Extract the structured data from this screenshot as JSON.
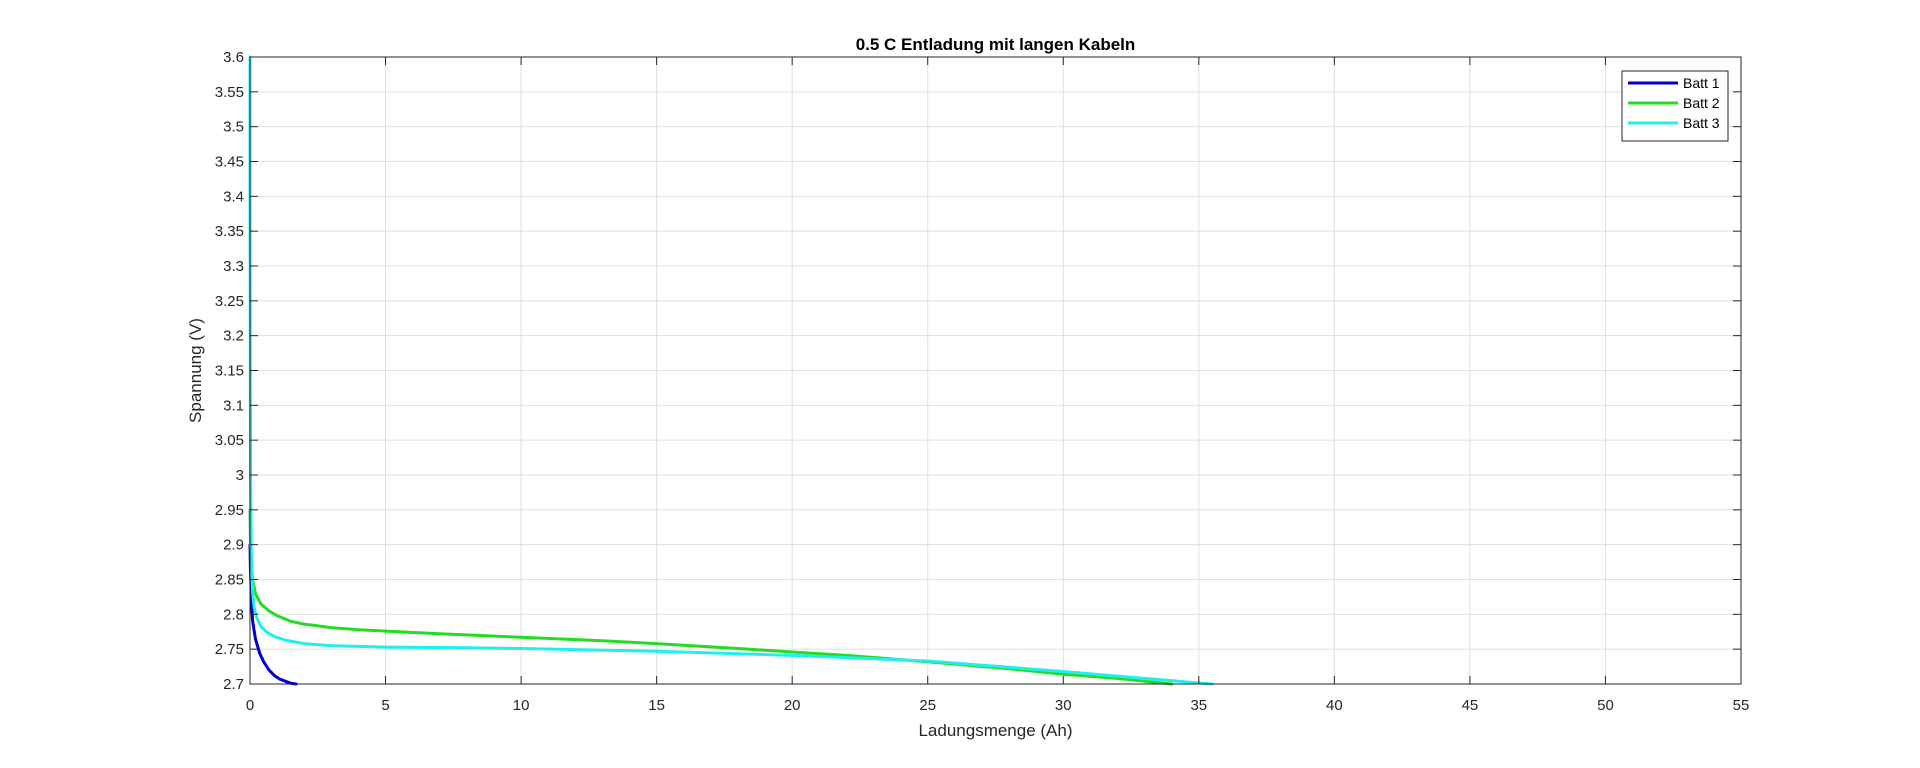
{
  "chart_data": {
    "type": "line",
    "title": "0.5 C Entladung mit langen Kabeln",
    "xlabel": "Ladungsmenge (Ah)",
    "ylabel": "Spannung (V)",
    "xlim": [
      0,
      55
    ],
    "ylim": [
      2.7,
      3.6
    ],
    "xticks": [
      0,
      5,
      10,
      15,
      20,
      25,
      30,
      35,
      40,
      45,
      50,
      55
    ],
    "xtick_labels": [
      "0",
      "5",
      "10",
      "15",
      "20",
      "25",
      "30",
      "35",
      "40",
      "45",
      "50",
      "55"
    ],
    "yticks": [
      2.7,
      2.75,
      2.8,
      2.85,
      2.9,
      2.95,
      3.0,
      3.05,
      3.1,
      3.15,
      3.2,
      3.25,
      3.3,
      3.35,
      3.4,
      3.45,
      3.5,
      3.55,
      3.6
    ],
    "ytick_labels": [
      "2.7",
      "2.75",
      "2.8",
      "2.85",
      "2.9",
      "2.95",
      "3",
      "3.05",
      "3.1",
      "3.15",
      "3.2",
      "3.25",
      "3.3",
      "3.35",
      "3.4",
      "3.45",
      "3.5",
      "3.55",
      "3.6"
    ],
    "grid": true,
    "legend_position": "top-right",
    "series": [
      {
        "name": "Batt 1",
        "color": "#0000cd",
        "x": [
          0,
          0.02,
          0.05,
          0.1,
          0.2,
          0.35,
          0.5,
          0.7,
          0.9,
          1.1,
          1.3,
          1.5,
          1.7
        ],
        "y": [
          2.9,
          2.86,
          2.82,
          2.79,
          2.765,
          2.745,
          2.732,
          2.72,
          2.712,
          2.707,
          2.704,
          2.701,
          2.7
        ]
      },
      {
        "name": "Batt 2",
        "color": "#22dd22",
        "x": [
          0,
          0.02,
          0.05,
          0.1,
          0.2,
          0.4,
          0.7,
          1,
          1.5,
          2,
          3,
          4,
          5,
          7,
          10,
          13,
          15,
          18,
          20,
          22,
          25,
          28,
          30,
          32,
          33,
          34
        ],
        "y": [
          2.95,
          2.9,
          2.87,
          2.85,
          2.83,
          2.815,
          2.805,
          2.798,
          2.79,
          2.786,
          2.781,
          2.778,
          2.776,
          2.772,
          2.767,
          2.762,
          2.758,
          2.751,
          2.746,
          2.741,
          2.732,
          2.722,
          2.714,
          2.708,
          2.704,
          2.7
        ]
      },
      {
        "name": "Batt 3",
        "color": "#22eeee",
        "x": [
          0,
          0,
          0.01,
          0.02,
          0.04,
          0.06,
          0.1,
          0.15,
          0.25,
          0.4,
          0.6,
          0.9,
          1.3,
          2,
          3,
          4,
          5,
          8,
          10,
          15,
          20,
          25,
          30,
          33,
          34.5,
          35.5
        ],
        "y": [
          3.6,
          3.4,
          3.2,
          3.0,
          2.92,
          2.87,
          2.83,
          2.81,
          2.795,
          2.783,
          2.775,
          2.768,
          2.763,
          2.758,
          2.755,
          2.754,
          2.753,
          2.752,
          2.751,
          2.747,
          2.741,
          2.733,
          2.718,
          2.708,
          2.703,
          2.7
        ]
      }
    ]
  }
}
